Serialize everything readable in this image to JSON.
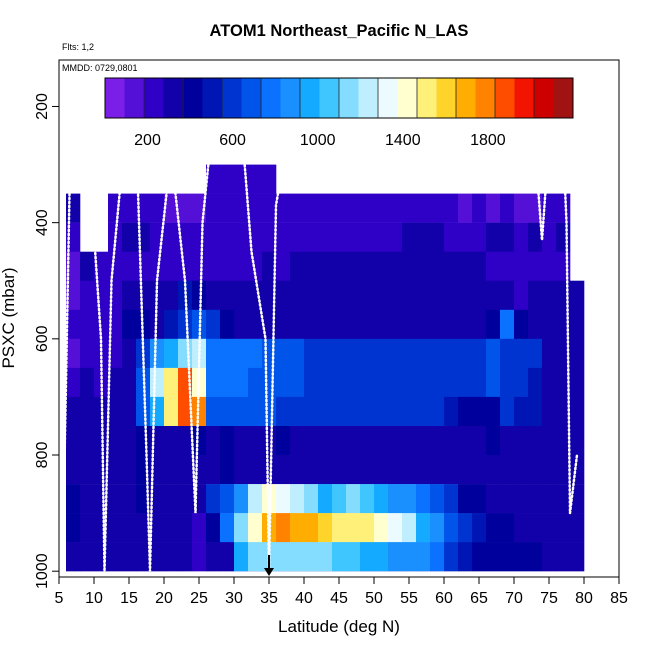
{
  "chart_data": {
    "type": "heatmap",
    "title": "ATOM1 Northeast_Pacific N_LAS",
    "annotations": {
      "flights": "Flts: 1,2",
      "dates": "MMDD: 0729,0801"
    },
    "xlabel": "Latitude (deg N)",
    "ylabel": "PSXC (mbar)",
    "xlim": [
      5,
      85
    ],
    "ylim": [
      1010,
      120
    ],
    "x_ticks": [
      5,
      10,
      15,
      20,
      25,
      30,
      35,
      40,
      45,
      50,
      55,
      60,
      65,
      70,
      75,
      80,
      85
    ],
    "y_ticks": [
      200,
      400,
      600,
      800,
      1000
    ],
    "colorbar": {
      "min": 0,
      "max": 2200,
      "tick_values": [
        200,
        600,
        1000,
        1400,
        1800
      ],
      "colors": [
        "#7b1fe8",
        "#5510d8",
        "#2f00c6",
        "#1200a8",
        "#00009c",
        "#0016b4",
        "#0034d0",
        "#0054ea",
        "#0a72ff",
        "#1a90ff",
        "#14aaff",
        "#3fc6ff",
        "#84dcff",
        "#bfefff",
        "#ecfbff",
        "#ffffd0",
        "#fff07a",
        "#ffd42a",
        "#ffad00",
        "#ff8200",
        "#ff4d00",
        "#f21400",
        "#cd0000",
        "#a11313"
      ]
    },
    "marker_latitude": 35,
    "latitude_profiles": [
      {
        "lat": 7,
        "values": [
          null,
          null,
          null,
          null,
          null,
          300,
          200,
          180,
          150,
          200,
          180,
          260,
          300,
          300,
          350,
          400,
          400,
          330,
          300
        ]
      },
      {
        "lat": 9,
        "values": [
          null,
          null,
          null,
          null,
          null,
          null,
          null,
          300,
          260,
          260,
          250,
          320,
          300,
          280,
          330,
          360,
          360,
          360,
          330
        ]
      },
      {
        "lat": 11,
        "values": [
          null,
          null,
          null,
          null,
          null,
          null,
          null,
          200,
          200,
          200,
          200,
          250,
          300,
          300,
          300,
          350,
          350,
          350,
          330
        ]
      },
      {
        "lat": 13,
        "values": [
          null,
          null,
          null,
          null,
          null,
          210,
          210,
          250,
          250,
          250,
          270,
          300,
          300,
          330,
          300,
          300,
          300,
          330,
          330
        ]
      },
      {
        "lat": 15,
        "values": [
          null,
          null,
          null,
          null,
          null,
          260,
          300,
          250,
          300,
          400,
          300,
          300,
          330,
          300,
          330,
          350,
          350,
          350,
          330
        ]
      },
      {
        "lat": 17,
        "values": [
          null,
          null,
          null,
          null,
          null,
          200,
          280,
          200,
          330,
          420,
          620,
          700,
          700,
          400,
          400,
          400,
          350,
          350,
          330
        ]
      },
      {
        "lat": 19,
        "values": [
          null,
          null,
          null,
          null,
          null,
          200,
          200,
          250,
          330,
          300,
          850,
          1200,
          1000,
          350,
          300,
          300,
          330,
          350,
          330
        ]
      },
      {
        "lat": 21,
        "values": [
          null,
          null,
          null,
          null,
          null,
          180,
          200,
          230,
          330,
          500,
          1000,
          1550,
          1500,
          330,
          330,
          320,
          300,
          280,
          250
        ]
      },
      {
        "lat": 23,
        "values": [
          null,
          null,
          null,
          null,
          null,
          180,
          220,
          230,
          500,
          600,
          1100,
          1900,
          1900,
          350,
          330,
          320,
          300,
          300,
          250
        ]
      },
      {
        "lat": 25,
        "values": [
          null,
          null,
          null,
          null,
          null,
          180,
          200,
          240,
          450,
          700,
          1200,
          1450,
          1800,
          380,
          330,
          300,
          250,
          250,
          250
        ]
      },
      {
        "lat": 27,
        "values": [
          null,
          null,
          null,
          null,
          220,
          220,
          220,
          250,
          350,
          600,
          800,
          800,
          700,
          330,
          300,
          600,
          400,
          300,
          280
        ]
      },
      {
        "lat": 29,
        "values": [
          null,
          null,
          null,
          null,
          200,
          200,
          200,
          250,
          300,
          400,
          800,
          800,
          700,
          400,
          380,
          700,
          750,
          300,
          280
        ]
      },
      {
        "lat": 31,
        "values": [
          null,
          null,
          null,
          null,
          200,
          200,
          200,
          250,
          300,
          300,
          780,
          780,
          700,
          300,
          300,
          900,
          1100,
          950,
          280
        ]
      },
      {
        "lat": 33,
        "values": [
          null,
          null,
          null,
          null,
          220,
          220,
          220,
          250,
          300,
          300,
          750,
          700,
          650,
          330,
          320,
          1250,
          1450,
          1150,
          280
        ]
      },
      {
        "lat": 35,
        "values": [
          null,
          null,
          null,
          null,
          220,
          220,
          220,
          280,
          330,
          300,
          700,
          650,
          650,
          330,
          330,
          1450,
          1650,
          1150,
          300
        ]
      },
      {
        "lat": 37,
        "values": [
          null,
          null,
          null,
          null,
          null,
          220,
          220,
          250,
          300,
          300,
          700,
          650,
          620,
          380,
          330,
          1350,
          1750,
          1150,
          280
        ]
      },
      {
        "lat": 39,
        "values": [
          null,
          null,
          null,
          null,
          null,
          220,
          250,
          300,
          300,
          300,
          700,
          650,
          600,
          350,
          330,
          1200,
          1700,
          1150,
          280
        ]
      },
      {
        "lat": 41,
        "values": [
          null,
          null,
          null,
          null,
          null,
          250,
          250,
          300,
          300,
          330,
          620,
          620,
          600,
          350,
          330,
          1100,
          1650,
          1150,
          280
        ]
      },
      {
        "lat": 43,
        "values": [
          null,
          null,
          null,
          null,
          null,
          230,
          250,
          330,
          320,
          330,
          600,
          620,
          600,
          350,
          350,
          1000,
          1600,
          1100,
          280
        ]
      },
      {
        "lat": 45,
        "values": [
          null,
          null,
          null,
          null,
          null,
          220,
          250,
          330,
          320,
          300,
          600,
          600,
          550,
          350,
          350,
          1050,
          1550,
          1050,
          280
        ]
      },
      {
        "lat": 47,
        "values": [
          null,
          null,
          null,
          null,
          null,
          220,
          250,
          300,
          320,
          300,
          600,
          600,
          550,
          350,
          350,
          1100,
          1500,
          1050,
          280
        ]
      },
      {
        "lat": 49,
        "values": [
          null,
          null,
          null,
          null,
          null,
          230,
          250,
          300,
          300,
          300,
          580,
          580,
          550,
          350,
          350,
          1050,
          1500,
          1000,
          280
        ]
      },
      {
        "lat": 51,
        "values": [
          null,
          null,
          null,
          null,
          null,
          230,
          250,
          300,
          320,
          300,
          580,
          600,
          550,
          350,
          350,
          1000,
          1400,
          1000,
          280
        ]
      },
      {
        "lat": 53,
        "values": [
          null,
          null,
          null,
          null,
          null,
          230,
          250,
          300,
          320,
          300,
          580,
          600,
          550,
          350,
          350,
          900,
          1300,
          900,
          280
        ]
      },
      {
        "lat": 55,
        "values": [
          null,
          null,
          null,
          null,
          null,
          230,
          280,
          320,
          320,
          300,
          580,
          600,
          550,
          350,
          350,
          850,
          1200,
          850,
          280
        ]
      },
      {
        "lat": 57,
        "values": [
          null,
          null,
          null,
          null,
          null,
          230,
          280,
          300,
          330,
          300,
          580,
          600,
          550,
          350,
          350,
          800,
          1000,
          850,
          280
        ]
      },
      {
        "lat": 59,
        "values": [
          null,
          null,
          null,
          null,
          null,
          230,
          280,
          320,
          330,
          300,
          580,
          600,
          550,
          350,
          330,
          700,
          850,
          750,
          280
        ]
      },
      {
        "lat": 61,
        "values": [
          null,
          null,
          null,
          null,
          null,
          230,
          250,
          300,
          320,
          300,
          580,
          620,
          500,
          350,
          300,
          550,
          700,
          600,
          280
        ]
      },
      {
        "lat": 63,
        "values": [
          null,
          null,
          null,
          null,
          null,
          130,
          200,
          280,
          280,
          300,
          550,
          600,
          450,
          350,
          300,
          450,
          600,
          500,
          280
        ]
      },
      {
        "lat": 65,
        "values": [
          null,
          null,
          null,
          null,
          null,
          200,
          230,
          300,
          330,
          350,
          600,
          600,
          400,
          350,
          300,
          400,
          500,
          400,
          300
        ]
      },
      {
        "lat": 67,
        "values": [
          null,
          null,
          null,
          null,
          null,
          130,
          300,
          250,
          330,
          400,
          700,
          700,
          450,
          400,
          300,
          350,
          450,
          400,
          300
        ]
      },
      {
        "lat": 69,
        "values": [
          null,
          null,
          null,
          null,
          null,
          200,
          300,
          260,
          330,
          800,
          600,
          550,
          600,
          350,
          300,
          300,
          400,
          400,
          330
        ]
      },
      {
        "lat": 71,
        "values": [
          null,
          null,
          null,
          null,
          null,
          180,
          250,
          250,
          250,
          400,
          600,
          550,
          500,
          350,
          300,
          300,
          330,
          400,
          330
        ]
      },
      {
        "lat": 73,
        "values": [
          null,
          null,
          null,
          null,
          null,
          130,
          300,
          250,
          350,
          300,
          550,
          500,
          500,
          300,
          300,
          300,
          350,
          400,
          330
        ]
      },
      {
        "lat": 75,
        "values": [
          null,
          null,
          null,
          null,
          null,
          220,
          200,
          200,
          300,
          300,
          350,
          300,
          300,
          280,
          300,
          300,
          330,
          330,
          330
        ]
      },
      {
        "lat": 77,
        "values": [
          null,
          null,
          null,
          null,
          null,
          200,
          280,
          200,
          280,
          300,
          300,
          300,
          300,
          280,
          300,
          330,
          300,
          300,
          330
        ]
      },
      {
        "lat": 79,
        "values": [
          null,
          null,
          null,
          null,
          null,
          null,
          null,
          null,
          300,
          300,
          300,
          300,
          300,
          300,
          300,
          300,
          300,
          300,
          300
        ]
      }
    ]
  }
}
